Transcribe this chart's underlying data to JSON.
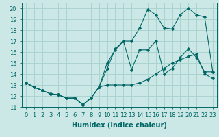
{
  "xlabel": "Humidex (Indice chaleur)",
  "xlim": [
    -0.5,
    23.5
  ],
  "ylim": [
    11,
    20.5
  ],
  "yticks": [
    11,
    12,
    13,
    14,
    15,
    16,
    17,
    18,
    19,
    20
  ],
  "xticks": [
    0,
    1,
    2,
    3,
    4,
    5,
    6,
    7,
    8,
    9,
    10,
    11,
    12,
    13,
    14,
    15,
    16,
    17,
    18,
    19,
    20,
    21,
    22,
    23
  ],
  "background_color": "#cce8e6",
  "grid_color": "#aad4d0",
  "line_color": "#006666",
  "lines": [
    {
      "x": [
        0,
        1,
        2,
        3,
        4,
        5,
        6,
        7,
        8,
        9,
        10,
        11,
        12,
        13,
        14,
        15,
        16,
        17,
        18,
        19,
        20,
        21,
        22,
        23
      ],
      "y": [
        13.2,
        12.8,
        12.5,
        12.2,
        12.1,
        11.8,
        11.8,
        11.2,
        11.8,
        12.8,
        13.0,
        13.0,
        13.0,
        13.0,
        13.2,
        13.5,
        14.0,
        14.5,
        15.0,
        15.3,
        15.6,
        15.8,
        14.0,
        13.6
      ]
    },
    {
      "x": [
        0,
        1,
        2,
        3,
        4,
        5,
        6,
        7,
        8,
        9,
        10,
        11,
        12,
        13,
        14,
        15,
        16,
        17,
        18,
        19,
        20,
        21,
        22,
        23
      ],
      "y": [
        13.2,
        12.8,
        12.5,
        12.2,
        12.1,
        11.8,
        11.8,
        11.2,
        11.8,
        12.8,
        15.0,
        16.2,
        17.0,
        14.4,
        16.2,
        16.2,
        17.0,
        14.0,
        14.5,
        15.5,
        16.3,
        15.5,
        14.2,
        14.2
      ]
    },
    {
      "x": [
        0,
        1,
        2,
        3,
        4,
        5,
        6,
        7,
        8,
        9,
        10,
        11,
        12,
        13,
        14,
        15,
        16,
        17,
        18,
        19,
        20,
        21,
        22,
        23
      ],
      "y": [
        13.2,
        12.8,
        12.5,
        12.2,
        12.1,
        11.8,
        11.8,
        11.2,
        11.8,
        12.8,
        14.5,
        16.3,
        17.0,
        17.0,
        18.2,
        19.9,
        19.4,
        18.2,
        18.1,
        19.4,
        20.0,
        19.4,
        19.2,
        14.2
      ]
    }
  ],
  "label_fontsize": 7,
  "tick_fontsize": 6
}
